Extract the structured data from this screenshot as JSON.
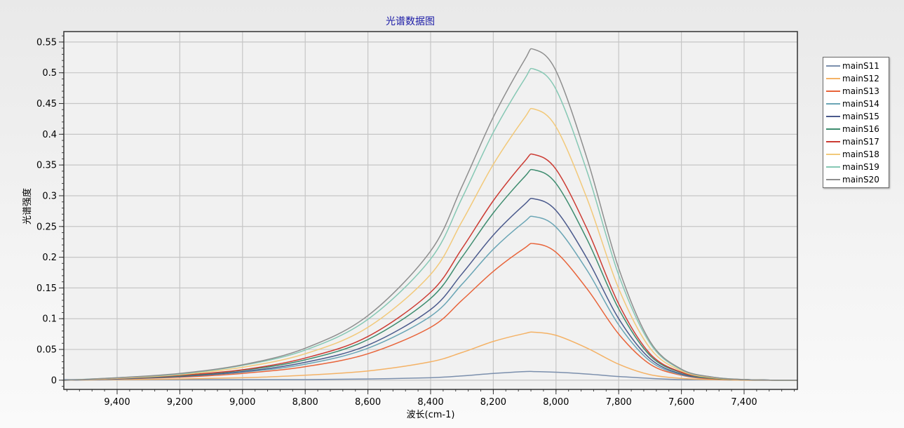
{
  "chart_data": {
    "type": "line",
    "title": "光谱数据图",
    "xlabel": "波长(cm-1)",
    "ylabel": "光谱强度",
    "x_reversed": true,
    "xlim": [
      9570,
      7230
    ],
    "ylim": [
      -0.015,
      0.567
    ],
    "x_ticks": [
      9400,
      9200,
      9000,
      8800,
      8600,
      8400,
      8200,
      8000,
      7800,
      7600,
      7400
    ],
    "x_tick_labels": [
      "9,400",
      "9,200",
      "9,000",
      "8,800",
      "8,600",
      "8,400",
      "8,200",
      "8,000",
      "7,800",
      "7,600",
      "7,400"
    ],
    "y_ticks": [
      0,
      0.05,
      0.1,
      0.15,
      0.2,
      0.25,
      0.3,
      0.35,
      0.4,
      0.45,
      0.5,
      0.55
    ],
    "y_tick_labels": [
      "0",
      "0.05",
      "0.1",
      "0.15",
      "0.2",
      "0.25",
      "0.3",
      "0.35",
      "0.4",
      "0.45",
      "0.5",
      "0.55"
    ],
    "grid": true,
    "legend_position": "right",
    "peak_x": 8070,
    "series": [
      {
        "name": "mainS11",
        "color": "#7b8fad",
        "x": [
          9570,
          9400,
          9200,
          9000,
          8800,
          8600,
          8400,
          8300,
          8200,
          8100,
          8070,
          8000,
          7900,
          7800,
          7700,
          7600,
          7500,
          7400,
          7300,
          7230
        ],
        "y": [
          0.001,
          0.001,
          0.001,
          0.001,
          0.001,
          0.002,
          0.004,
          0.007,
          0.011,
          0.014,
          0.014,
          0.013,
          0.01,
          0.006,
          0.003,
          0.001,
          0.001,
          0.0,
          0.0,
          0.0
        ]
      },
      {
        "name": "mainS12",
        "color": "#f4b266",
        "x": [
          9570,
          9400,
          9200,
          9000,
          8800,
          8600,
          8400,
          8300,
          8200,
          8100,
          8070,
          8000,
          7900,
          7800,
          7700,
          7600,
          7500,
          7400,
          7300,
          7230
        ],
        "y": [
          0.0,
          0.001,
          0.002,
          0.004,
          0.008,
          0.015,
          0.03,
          0.045,
          0.063,
          0.076,
          0.078,
          0.073,
          0.052,
          0.026,
          0.009,
          0.003,
          0.001,
          0.0,
          0.0,
          0.0
        ]
      },
      {
        "name": "mainS13",
        "color": "#e8643a",
        "x": [
          9570,
          9400,
          9200,
          9000,
          8800,
          8600,
          8400,
          8300,
          8200,
          8100,
          8070,
          8000,
          7900,
          7800,
          7700,
          7600,
          7500,
          7400,
          7300,
          7230
        ],
        "y": [
          0.0,
          0.002,
          0.005,
          0.011,
          0.022,
          0.043,
          0.086,
          0.13,
          0.177,
          0.215,
          0.222,
          0.208,
          0.148,
          0.075,
          0.026,
          0.008,
          0.002,
          0.001,
          0.0,
          0.0
        ]
      },
      {
        "name": "mainS14",
        "color": "#6aa5b5",
        "x": [
          9570,
          9400,
          9200,
          9000,
          8800,
          8600,
          8400,
          8300,
          8200,
          8100,
          8070,
          8000,
          7900,
          7800,
          7700,
          7600,
          7500,
          7400,
          7300,
          7230
        ],
        "y": [
          0.0,
          0.002,
          0.006,
          0.013,
          0.026,
          0.052,
          0.104,
          0.156,
          0.213,
          0.258,
          0.266,
          0.249,
          0.178,
          0.09,
          0.031,
          0.009,
          0.003,
          0.001,
          0.0,
          0.0
        ]
      },
      {
        "name": "mainS15",
        "color": "#4b5a8c",
        "x": [
          9570,
          9400,
          9200,
          9000,
          8800,
          8600,
          8400,
          8300,
          8200,
          8100,
          8070,
          8000,
          7900,
          7800,
          7700,
          7600,
          7500,
          7400,
          7300,
          7230
        ],
        "y": [
          0.0,
          0.002,
          0.006,
          0.014,
          0.029,
          0.057,
          0.115,
          0.173,
          0.236,
          0.286,
          0.295,
          0.276,
          0.197,
          0.1,
          0.035,
          0.01,
          0.003,
          0.001,
          0.0,
          0.0
        ]
      },
      {
        "name": "mainS16",
        "color": "#3e8c6f",
        "x": [
          9570,
          9400,
          9200,
          9000,
          8800,
          8600,
          8400,
          8300,
          8200,
          8100,
          8070,
          8000,
          7900,
          7800,
          7700,
          7600,
          7500,
          7400,
          7300,
          7230
        ],
        "y": [
          0.0,
          0.003,
          0.007,
          0.016,
          0.033,
          0.066,
          0.133,
          0.2,
          0.272,
          0.331,
          0.342,
          0.32,
          0.228,
          0.116,
          0.04,
          0.012,
          0.003,
          0.001,
          0.0,
          0.0
        ]
      },
      {
        "name": "mainS17",
        "color": "#cc3b33",
        "x": [
          9570,
          9400,
          9200,
          9000,
          8800,
          8600,
          8400,
          8300,
          8200,
          8100,
          8070,
          8000,
          7900,
          7800,
          7700,
          7600,
          7500,
          7400,
          7300,
          7230
        ],
        "y": [
          0.0,
          0.003,
          0.008,
          0.017,
          0.036,
          0.071,
          0.143,
          0.214,
          0.292,
          0.356,
          0.367,
          0.343,
          0.245,
          0.124,
          0.043,
          0.013,
          0.004,
          0.001,
          0.0,
          0.0
        ]
      },
      {
        "name": "mainS18",
        "color": "#f2c97a",
        "x": [
          9570,
          9400,
          9200,
          9000,
          8800,
          8600,
          8400,
          8300,
          8200,
          8100,
          8070,
          8000,
          7900,
          7800,
          7700,
          7600,
          7500,
          7400,
          7300,
          7230
        ],
        "y": [
          0.0,
          0.003,
          0.009,
          0.021,
          0.043,
          0.086,
          0.172,
          0.258,
          0.351,
          0.427,
          0.441,
          0.412,
          0.294,
          0.149,
          0.052,
          0.015,
          0.004,
          0.001,
          0.0,
          0.0
        ]
      },
      {
        "name": "mainS19",
        "color": "#86c8b4",
        "x": [
          9570,
          9400,
          9200,
          9000,
          8800,
          8600,
          8400,
          8300,
          8200,
          8100,
          8070,
          8000,
          7900,
          7800,
          7700,
          7600,
          7500,
          7400,
          7300,
          7230
        ],
        "y": [
          0.0,
          0.004,
          0.01,
          0.024,
          0.049,
          0.099,
          0.197,
          0.296,
          0.403,
          0.49,
          0.506,
          0.473,
          0.338,
          0.171,
          0.06,
          0.017,
          0.005,
          0.001,
          0.0,
          0.0
        ]
      },
      {
        "name": "mainS20",
        "color": "#8e8e8e",
        "x": [
          9570,
          9400,
          9200,
          9000,
          8800,
          8600,
          8400,
          8300,
          8200,
          8100,
          8070,
          8000,
          7900,
          7800,
          7700,
          7600,
          7500,
          7400,
          7300,
          7230
        ],
        "y": [
          0.0,
          0.004,
          0.011,
          0.025,
          0.052,
          0.105,
          0.21,
          0.315,
          0.428,
          0.521,
          0.538,
          0.503,
          0.359,
          0.182,
          0.063,
          0.018,
          0.005,
          0.001,
          0.0,
          0.0
        ]
      }
    ]
  }
}
